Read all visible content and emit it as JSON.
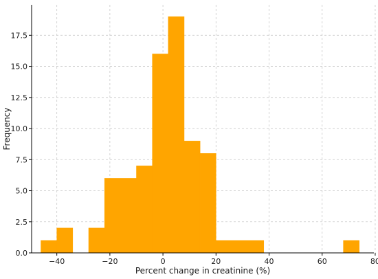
{
  "chart_data": {
    "type": "bar",
    "subtype": "histogram",
    "title": "",
    "xlabel": "Percent change in creatinine (%)",
    "ylabel": "Frequency",
    "xlim": [
      -49.5,
      79.5
    ],
    "ylim": [
      0,
      19.95
    ],
    "xticks": [
      -40,
      -20,
      0,
      20,
      40,
      60,
      80
    ],
    "xtick_labels": [
      "−40",
      "−20",
      "0",
      "20",
      "40",
      "60",
      "80"
    ],
    "yticks": [
      0,
      2.5,
      5,
      7.5,
      10,
      12.5,
      15,
      17.5
    ],
    "ytick_labels": [
      "0.0",
      "2.5",
      "5.0",
      "7.5",
      "10.0",
      "12.5",
      "15.0",
      "17.5"
    ],
    "grid": true,
    "bar_color": "#FFA500",
    "bins": [
      {
        "x0": -46,
        "x1": -40,
        "count": 1
      },
      {
        "x0": -40,
        "x1": -34,
        "count": 2
      },
      {
        "x0": -28,
        "x1": -22,
        "count": 2
      },
      {
        "x0": -22,
        "x1": -10,
        "count": 6
      },
      {
        "x0": -10,
        "x1": -4,
        "count": 7
      },
      {
        "x0": -4,
        "x1": 2,
        "count": 16
      },
      {
        "x0": 2,
        "x1": 8,
        "count": 19
      },
      {
        "x0": 8,
        "x1": 14,
        "count": 9
      },
      {
        "x0": 14,
        "x1": 20,
        "count": 8
      },
      {
        "x0": 20,
        "x1": 38,
        "count": 1
      },
      {
        "x0": 68,
        "x1": 74,
        "count": 1
      }
    ]
  }
}
